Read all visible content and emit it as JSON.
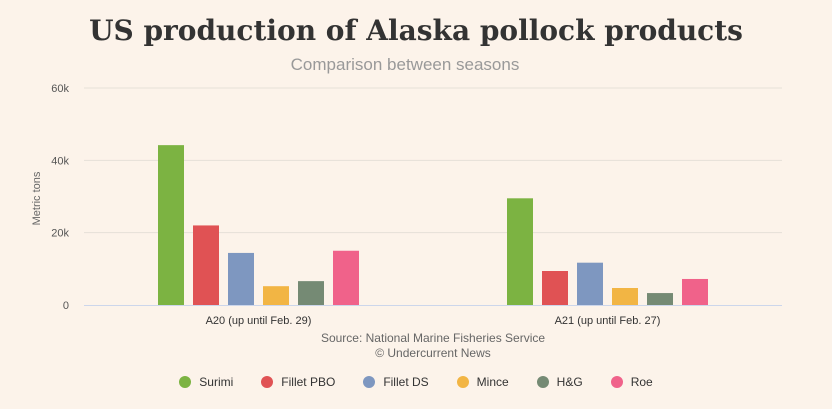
{
  "chart_data": {
    "type": "bar",
    "title": "US production of Alaska pollock products",
    "subtitle": "Comparison between seasons",
    "ylabel": "Metric tons",
    "xlabel": "",
    "categories": [
      "A20 (up until Feb. 29)",
      "A21 (up until Feb. 27)"
    ],
    "ylim": [
      0,
      60000
    ],
    "yticks": [
      0,
      20000,
      40000,
      60000
    ],
    "ytick_labels": [
      "0",
      "20k",
      "40k",
      "60k"
    ],
    "grid": true,
    "legend_position": "bottom",
    "series": [
      {
        "name": "Surimi",
        "color": "#7cb342",
        "values": [
          44200,
          29500
        ]
      },
      {
        "name": "Fillet PBO",
        "color": "#e05254",
        "values": [
          22000,
          9400
        ]
      },
      {
        "name": "Fillet DS",
        "color": "#7e97c0",
        "values": [
          14400,
          11700
        ]
      },
      {
        "name": "Mince",
        "color": "#f2b544",
        "values": [
          5200,
          4700
        ]
      },
      {
        "name": "H&G",
        "color": "#758a74",
        "values": [
          6600,
          3300
        ]
      },
      {
        "name": "Roe",
        "color": "#f0628a",
        "values": [
          15000,
          7200
        ]
      }
    ]
  },
  "credits": {
    "source": "Source: National Marine Fisheries Service",
    "copyright": "© Undercurrent News"
  }
}
